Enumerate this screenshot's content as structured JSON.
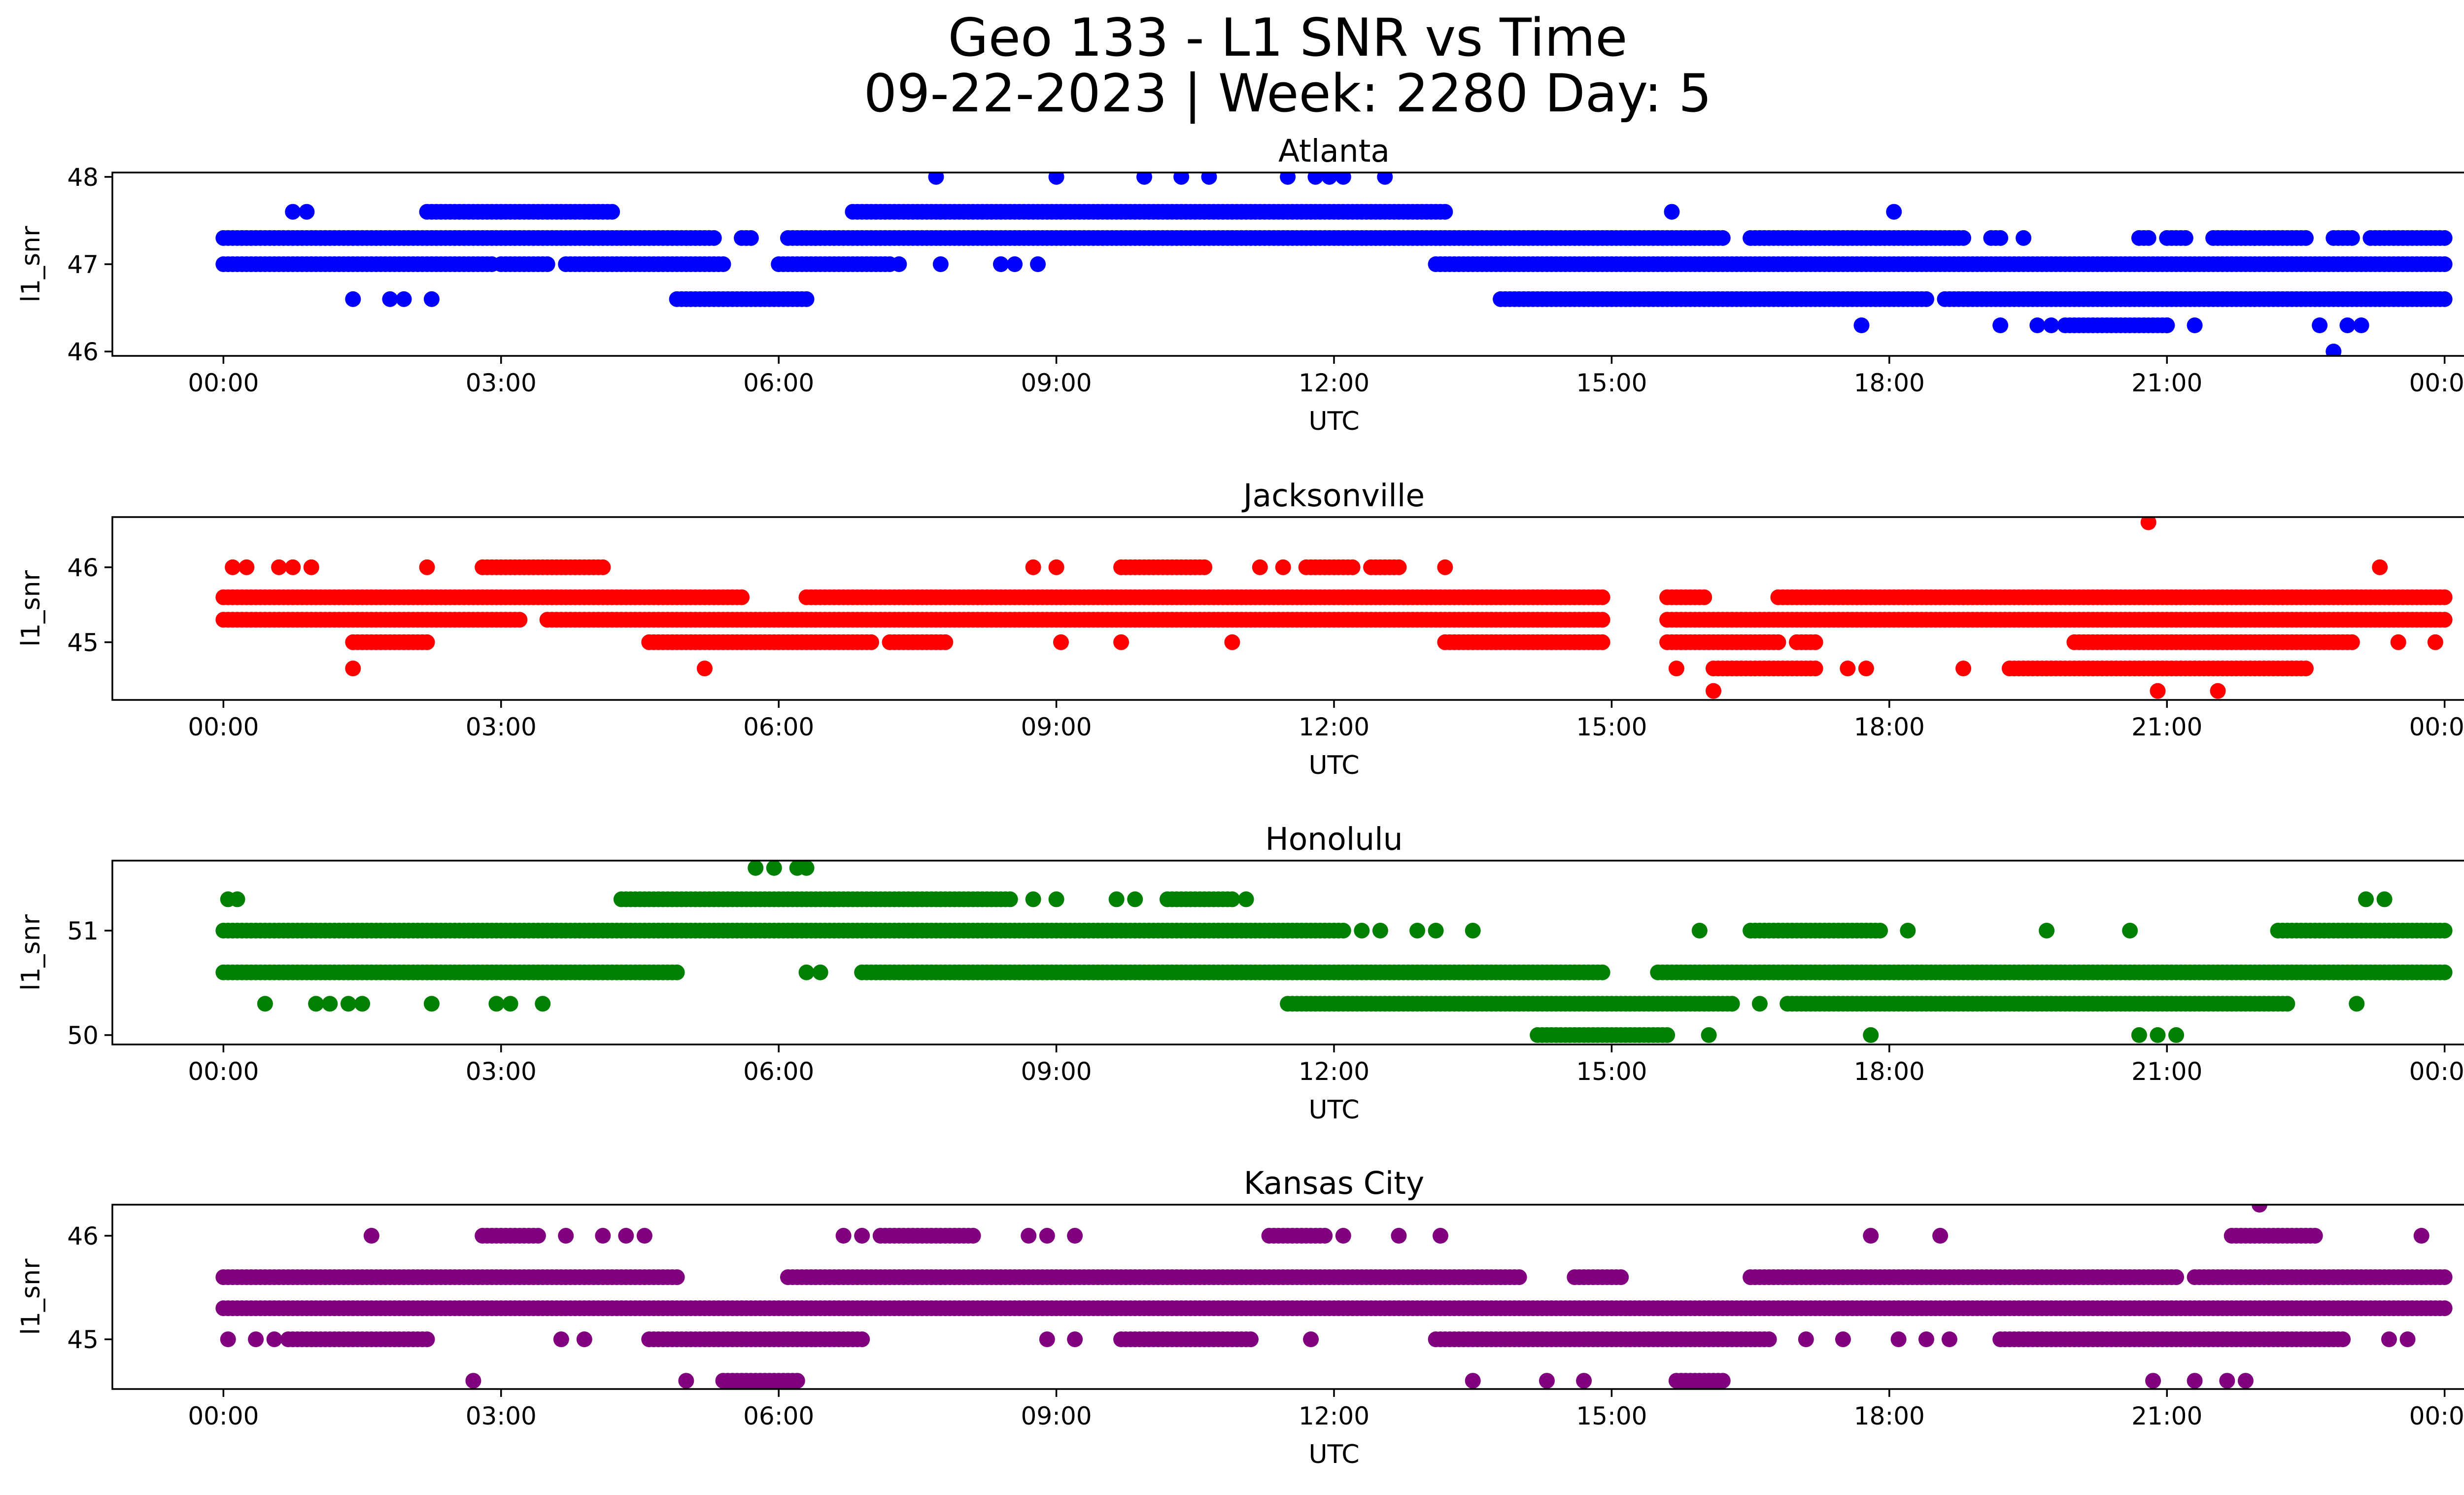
{
  "figure": {
    "title_line1": "Geo 133 - L1 SNR vs Time",
    "title_line2": "09-22-2023 | Week: 2280 Day: 5"
  },
  "chart_data": [
    {
      "type": "scatter",
      "title": "Atlanta",
      "xlabel": "UTC",
      "ylabel": "l1_snr",
      "color": "#0000ff",
      "x_ticks": [
        "00:00",
        "03:00",
        "06:00",
        "09:00",
        "12:00",
        "15:00",
        "18:00",
        "21:00",
        "00:00"
      ],
      "xlim_hours": [
        -1.2,
        25.2
      ],
      "y_ticks": [
        46,
        47,
        48
      ],
      "ylim": [
        45.95,
        48.05
      ],
      "bands": [
        {
          "y": 47.0,
          "segments": [
            [
              0,
              2.9
            ],
            [
              3.0,
              3.5
            ],
            [
              3.7,
              5.4
            ],
            [
              6.0,
              7.2
            ],
            [
              13.1,
              24.0
            ]
          ]
        },
        {
          "y": 47.3,
          "segments": [
            [
              0,
              5.3
            ],
            [
              5.6,
              5.7
            ],
            [
              6.1,
              16.2
            ],
            [
              16.5,
              18.8
            ],
            [
              19.1,
              19.2
            ],
            [
              20.7,
              20.8
            ],
            [
              21.0,
              21.2
            ],
            [
              21.5,
              22.5
            ],
            [
              22.8,
              23.0
            ],
            [
              23.2,
              24.0
            ]
          ]
        },
        {
          "y": 47.6,
          "segments": [
            [
              2.2,
              4.2
            ],
            [
              6.8,
              13.2
            ]
          ]
        },
        {
          "y": 46.6,
          "segments": [
            [
              4.9,
              6.3
            ],
            [
              13.8,
              18.4
            ],
            [
              18.6,
              24.0
            ]
          ]
        },
        {
          "y": 46.3,
          "segments": [
            [
              19.9,
              21.0
            ]
          ]
        }
      ],
      "points": [
        {
          "x": 0.75,
          "y": 47.6
        },
        {
          "x": 0.9,
          "y": 47.6
        },
        {
          "x": 1.4,
          "y": 46.6
        },
        {
          "x": 1.8,
          "y": 46.6
        },
        {
          "x": 1.95,
          "y": 46.6
        },
        {
          "x": 2.25,
          "y": 46.6
        },
        {
          "x": 7.7,
          "y": 48.0
        },
        {
          "x": 9.0,
          "y": 48.0
        },
        {
          "x": 9.95,
          "y": 48.0
        },
        {
          "x": 10.35,
          "y": 48.0
        },
        {
          "x": 10.65,
          "y": 48.0
        },
        {
          "x": 11.5,
          "y": 48.0
        },
        {
          "x": 11.8,
          "y": 48.0
        },
        {
          "x": 11.95,
          "y": 48.0
        },
        {
          "x": 12.1,
          "y": 48.0
        },
        {
          "x": 12.55,
          "y": 48.0
        },
        {
          "x": 7.3,
          "y": 47.0
        },
        {
          "x": 7.75,
          "y": 47.0
        },
        {
          "x": 8.4,
          "y": 47.0
        },
        {
          "x": 8.55,
          "y": 47.0
        },
        {
          "x": 8.8,
          "y": 47.0
        },
        {
          "x": 15.65,
          "y": 47.6
        },
        {
          "x": 18.05,
          "y": 47.6
        },
        {
          "x": 17.7,
          "y": 46.3
        },
        {
          "x": 19.2,
          "y": 46.3
        },
        {
          "x": 19.45,
          "y": 47.3
        },
        {
          "x": 19.6,
          "y": 46.3
        },
        {
          "x": 19.75,
          "y": 46.3
        },
        {
          "x": 21.0,
          "y": 46.3
        },
        {
          "x": 21.3,
          "y": 46.3
        },
        {
          "x": 22.65,
          "y": 46.3
        },
        {
          "x": 22.95,
          "y": 46.3
        },
        {
          "x": 23.1,
          "y": 46.3
        },
        {
          "x": 22.8,
          "y": 46.0
        }
      ]
    },
    {
      "type": "scatter",
      "title": "Jacksonville",
      "xlabel": "UTC",
      "ylabel": "l1_snr",
      "color": "#ff0000",
      "x_ticks": [
        "00:00",
        "03:00",
        "06:00",
        "09:00",
        "12:00",
        "15:00",
        "18:00",
        "21:00",
        "00:00"
      ],
      "xlim_hours": [
        -1.2,
        25.2
      ],
      "y_ticks": [
        45,
        46
      ],
      "ylim": [
        44.23,
        46.67
      ],
      "bands": [
        {
          "y": 45.3,
          "segments": [
            [
              0,
              3.2
            ],
            [
              3.5,
              14.9
            ],
            [
              15.6,
              24.0
            ]
          ]
        },
        {
          "y": 45.6,
          "segments": [
            [
              0,
              5.6
            ],
            [
              6.3,
              14.9
            ],
            [
              15.6,
              16.0
            ],
            [
              16.8,
              24.0
            ]
          ]
        },
        {
          "y": 45.0,
          "segments": [
            [
              1.4,
              2.2
            ],
            [
              4.6,
              7.0
            ],
            [
              7.2,
              7.8
            ],
            [
              13.2,
              14.9
            ],
            [
              15.6,
              16.8
            ],
            [
              17.0,
              17.2
            ],
            [
              20.0,
              23.0
            ]
          ]
        },
        {
          "y": 46.0,
          "segments": [
            [
              2.8,
              4.1
            ],
            [
              9.7,
              10.6
            ],
            [
              11.7,
              12.2
            ],
            [
              12.4,
              12.7
            ]
          ]
        },
        {
          "y": 44.65,
          "segments": [
            [
              16.1,
              17.2
            ],
            [
              19.3,
              22.5
            ]
          ]
        }
      ],
      "points": [
        {
          "x": 0.1,
          "y": 46.0
        },
        {
          "x": 0.25,
          "y": 46.0
        },
        {
          "x": 0.6,
          "y": 46.0
        },
        {
          "x": 0.75,
          "y": 46.0
        },
        {
          "x": 0.95,
          "y": 46.0
        },
        {
          "x": 2.2,
          "y": 46.0
        },
        {
          "x": 1.4,
          "y": 44.65
        },
        {
          "x": 5.2,
          "y": 44.65
        },
        {
          "x": 8.75,
          "y": 46.0
        },
        {
          "x": 9.0,
          "y": 46.0
        },
        {
          "x": 9.05,
          "y": 45.0
        },
        {
          "x": 9.7,
          "y": 45.0
        },
        {
          "x": 10.9,
          "y": 45.0
        },
        {
          "x": 11.2,
          "y": 46.0
        },
        {
          "x": 11.45,
          "y": 46.0
        },
        {
          "x": 13.2,
          "y": 46.0
        },
        {
          "x": 15.7,
          "y": 44.65
        },
        {
          "x": 16.1,
          "y": 44.35
        },
        {
          "x": 17.55,
          "y": 44.65
        },
        {
          "x": 17.75,
          "y": 44.65
        },
        {
          "x": 18.8,
          "y": 44.65
        },
        {
          "x": 20.9,
          "y": 44.35
        },
        {
          "x": 21.55,
          "y": 44.35
        },
        {
          "x": 20.8,
          "y": 46.6
        },
        {
          "x": 23.3,
          "y": 46.0
        },
        {
          "x": 23.9,
          "y": 45.0
        },
        {
          "x": 23.5,
          "y": 45.0
        }
      ]
    },
    {
      "type": "scatter",
      "title": "Honolulu",
      "xlabel": "UTC",
      "ylabel": "l1_snr",
      "color": "#008000",
      "x_ticks": [
        "00:00",
        "03:00",
        "06:00",
        "09:00",
        "12:00",
        "15:00",
        "18:00",
        "21:00",
        "00:00"
      ],
      "xlim_hours": [
        -1.2,
        25.2
      ],
      "y_ticks": [
        50,
        51
      ],
      "ylim": [
        49.91,
        51.67
      ],
      "bands": [
        {
          "y": 51.0,
          "segments": [
            [
              0,
              12.1
            ],
            [
              16.5,
              17.9
            ],
            [
              22.2,
              24.0
            ]
          ]
        },
        {
          "y": 50.6,
          "segments": [
            [
              0,
              4.9
            ],
            [
              6.9,
              14.9
            ],
            [
              15.5,
              24.0
            ]
          ]
        },
        {
          "y": 51.3,
          "segments": [
            [
              4.3,
              6.6
            ],
            [
              6.6,
              8.5
            ],
            [
              10.2,
              10.9
            ]
          ]
        },
        {
          "y": 50.3,
          "segments": [
            [
              11.5,
              16.3
            ],
            [
              16.9,
              22.3
            ]
          ]
        },
        {
          "y": 50.0,
          "segments": [
            [
              14.2,
              15.6
            ]
          ]
        }
      ],
      "points": [
        {
          "x": 0.05,
          "y": 51.3
        },
        {
          "x": 0.15,
          "y": 51.3
        },
        {
          "x": 0.45,
          "y": 50.3
        },
        {
          "x": 1.0,
          "y": 50.3
        },
        {
          "x": 1.15,
          "y": 50.3
        },
        {
          "x": 1.35,
          "y": 50.3
        },
        {
          "x": 1.5,
          "y": 50.3
        },
        {
          "x": 2.25,
          "y": 50.3
        },
        {
          "x": 2.95,
          "y": 50.3
        },
        {
          "x": 3.1,
          "y": 50.3
        },
        {
          "x": 3.45,
          "y": 50.3
        },
        {
          "x": 5.75,
          "y": 51.6
        },
        {
          "x": 5.95,
          "y": 51.6
        },
        {
          "x": 6.2,
          "y": 51.6
        },
        {
          "x": 6.3,
          "y": 51.6
        },
        {
          "x": 6.3,
          "y": 50.6
        },
        {
          "x": 6.45,
          "y": 50.6
        },
        {
          "x": 8.75,
          "y": 51.3
        },
        {
          "x": 9.0,
          "y": 51.3
        },
        {
          "x": 9.65,
          "y": 51.3
        },
        {
          "x": 9.85,
          "y": 51.3
        },
        {
          "x": 11.05,
          "y": 51.3
        },
        {
          "x": 12.3,
          "y": 51.0
        },
        {
          "x": 12.5,
          "y": 51.0
        },
        {
          "x": 12.9,
          "y": 51.0
        },
        {
          "x": 13.1,
          "y": 51.0
        },
        {
          "x": 13.5,
          "y": 51.0
        },
        {
          "x": 15.95,
          "y": 51.0
        },
        {
          "x": 16.05,
          "y": 50.0
        },
        {
          "x": 17.8,
          "y": 50.0
        },
        {
          "x": 18.2,
          "y": 51.0
        },
        {
          "x": 19.7,
          "y": 51.0
        },
        {
          "x": 20.6,
          "y": 51.0
        },
        {
          "x": 20.7,
          "y": 50.0
        },
        {
          "x": 20.9,
          "y": 50.0
        },
        {
          "x": 21.1,
          "y": 50.0
        },
        {
          "x": 23.05,
          "y": 50.3
        },
        {
          "x": 23.15,
          "y": 51.3
        },
        {
          "x": 23.35,
          "y": 51.3
        },
        {
          "x": 16.3,
          "y": 50.3
        },
        {
          "x": 16.6,
          "y": 50.3
        }
      ]
    },
    {
      "type": "scatter",
      "title": "Kansas City",
      "xlabel": "UTC",
      "ylabel": "l1_snr",
      "color": "#800080",
      "x_ticks": [
        "00:00",
        "03:00",
        "06:00",
        "09:00",
        "12:00",
        "15:00",
        "18:00",
        "21:00",
        "00:00"
      ],
      "xlim_hours": [
        -1.2,
        25.2
      ],
      "y_ticks": [
        45,
        46
      ],
      "ylim": [
        44.52,
        46.3
      ],
      "bands": [
        {
          "y": 45.3,
          "segments": [
            [
              0,
              24.0
            ]
          ]
        },
        {
          "y": 45.6,
          "segments": [
            [
              0,
              4.9
            ],
            [
              6.1,
              14.0
            ],
            [
              14.6,
              15.1
            ],
            [
              16.5,
              21.1
            ],
            [
              21.3,
              24.0
            ]
          ]
        },
        {
          "y": 45.0,
          "segments": [
            [
              0.7,
              2.2
            ],
            [
              4.6,
              6.9
            ],
            [
              9.7,
              11.1
            ],
            [
              13.1,
              16.7
            ],
            [
              19.2,
              22.9
            ]
          ]
        },
        {
          "y": 46.0,
          "segments": [
            [
              2.8,
              3.4
            ],
            [
              7.1,
              8.1
            ],
            [
              11.3,
              11.9
            ],
            [
              21.7,
              22.6
            ]
          ]
        },
        {
          "y": 44.6,
          "segments": [
            [
              5.4,
              6.2
            ],
            [
              15.7,
              16.2
            ]
          ]
        }
      ],
      "points": [
        {
          "x": 0.05,
          "y": 45.0
        },
        {
          "x": 0.35,
          "y": 45.0
        },
        {
          "x": 0.55,
          "y": 45.0
        },
        {
          "x": 1.6,
          "y": 46.0
        },
        {
          "x": 2.7,
          "y": 44.6
        },
        {
          "x": 5.0,
          "y": 44.6
        },
        {
          "x": 3.7,
          "y": 46.0
        },
        {
          "x": 4.1,
          "y": 46.0
        },
        {
          "x": 4.35,
          "y": 46.0
        },
        {
          "x": 4.55,
          "y": 46.0
        },
        {
          "x": 3.65,
          "y": 45.0
        },
        {
          "x": 3.9,
          "y": 45.0
        },
        {
          "x": 6.7,
          "y": 46.0
        },
        {
          "x": 6.9,
          "y": 46.0
        },
        {
          "x": 8.7,
          "y": 46.0
        },
        {
          "x": 8.9,
          "y": 46.0
        },
        {
          "x": 9.2,
          "y": 46.0
        },
        {
          "x": 8.9,
          "y": 45.0
        },
        {
          "x": 9.2,
          "y": 45.0
        },
        {
          "x": 11.75,
          "y": 45.0
        },
        {
          "x": 12.1,
          "y": 46.0
        },
        {
          "x": 12.7,
          "y": 46.0
        },
        {
          "x": 13.15,
          "y": 46.0
        },
        {
          "x": 13.5,
          "y": 44.6
        },
        {
          "x": 14.3,
          "y": 44.6
        },
        {
          "x": 14.7,
          "y": 44.6
        },
        {
          "x": 17.8,
          "y": 46.0
        },
        {
          "x": 18.55,
          "y": 46.0
        },
        {
          "x": 17.1,
          "y": 45.0
        },
        {
          "x": 17.5,
          "y": 45.0
        },
        {
          "x": 18.1,
          "y": 45.0
        },
        {
          "x": 18.4,
          "y": 45.0
        },
        {
          "x": 18.65,
          "y": 45.0
        },
        {
          "x": 20.85,
          "y": 44.6
        },
        {
          "x": 21.3,
          "y": 44.6
        },
        {
          "x": 21.65,
          "y": 44.6
        },
        {
          "x": 21.85,
          "y": 44.6
        },
        {
          "x": 22.0,
          "y": 46.3
        },
        {
          "x": 23.75,
          "y": 46.0
        },
        {
          "x": 23.4,
          "y": 45.0
        },
        {
          "x": 23.6,
          "y": 45.0
        }
      ]
    }
  ]
}
